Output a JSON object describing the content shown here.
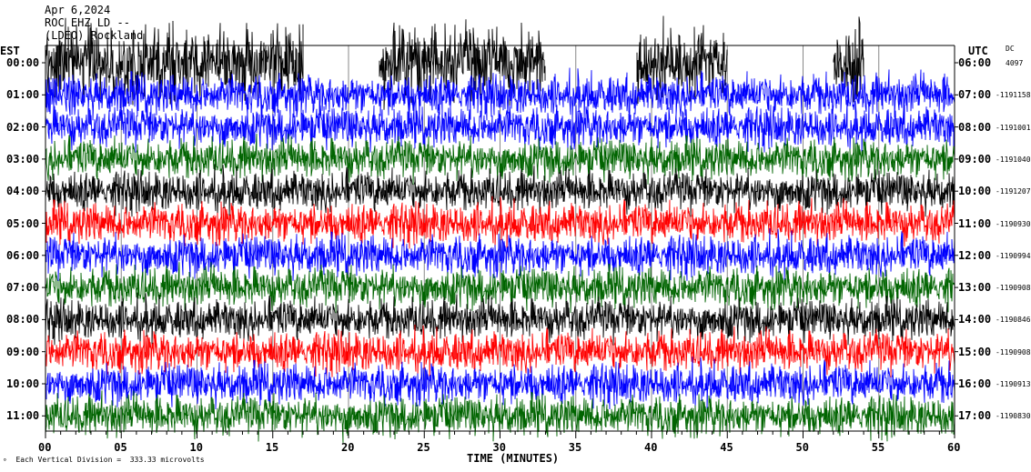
{
  "header": {
    "date": "Apr 6,2024",
    "station": "ROC EHZ LD --",
    "network_line": "(LDEO) Rockland"
  },
  "left_tz": "EST",
  "right_tz": "UTC",
  "dc_label": "DC",
  "x_axis_title": "TIME (MINUTES)",
  "footer": {
    "scale_text": "Each Vertical Division =  333.33 microvolts"
  },
  "colors": {
    "cycle": [
      "#000000",
      "#ff0000",
      "#0000ff",
      "#006400"
    ],
    "grid": "#888888",
    "axis": "#000000"
  },
  "chart_data": {
    "type": "line",
    "title": "",
    "xlabel": "TIME (MINUTES)",
    "ylabel": "",
    "xlim": [
      0,
      60
    ],
    "x_ticks": [
      "00",
      "05",
      "10",
      "15",
      "20",
      "25",
      "30",
      "35",
      "40",
      "45",
      "50",
      "55",
      "60"
    ],
    "series": [
      {
        "left": "00:00",
        "right": "06:00",
        "dc": "4097",
        "color": "#000000",
        "amplitude": "very high",
        "noise_gaps": [
          [
            17,
            22
          ],
          [
            33,
            39
          ],
          [
            45,
            52
          ],
          [
            54,
            60
          ]
        ]
      },
      {
        "left": "01:00",
        "right": "07:00",
        "dc": "-1191158",
        "color": "#0000ff",
        "amplitude": "medium",
        "noise_gaps": []
      },
      {
        "left": "02:00",
        "right": "08:00",
        "dc": "-1191001",
        "color": "#0000ff",
        "amplitude": "medium",
        "noise_gaps": []
      },
      {
        "left": "03:00",
        "right": "09:00",
        "dc": "-1191040",
        "color": "#006400",
        "amplitude": "medium",
        "noise_gaps": []
      },
      {
        "left": "04:00",
        "right": "10:00",
        "dc": "-1191207",
        "color": "#000000",
        "amplitude": "medium",
        "noise_gaps": []
      },
      {
        "left": "05:00",
        "right": "11:00",
        "dc": "-1190930",
        "color": "#ff0000",
        "amplitude": "medium",
        "noise_gaps": []
      },
      {
        "left": "06:00",
        "right": "12:00",
        "dc": "-1190994",
        "color": "#0000ff",
        "amplitude": "medium",
        "noise_gaps": []
      },
      {
        "left": "07:00",
        "right": "13:00",
        "dc": "-1190908",
        "color": "#006400",
        "amplitude": "medium",
        "noise_gaps": []
      },
      {
        "left": "08:00",
        "right": "14:00",
        "dc": "-1190846",
        "color": "#000000",
        "amplitude": "medium",
        "noise_gaps": []
      },
      {
        "left": "09:00",
        "right": "15:00",
        "dc": "-1190908",
        "color": "#ff0000",
        "amplitude": "medium",
        "noise_gaps": []
      },
      {
        "left": "10:00",
        "right": "16:00",
        "dc": "-1190913",
        "color": "#0000ff",
        "amplitude": "medium",
        "noise_gaps": []
      },
      {
        "left": "11:00",
        "right": "17:00",
        "dc": "-1190830",
        "color": "#006400",
        "amplitude": "medium",
        "noise_gaps": []
      }
    ]
  }
}
